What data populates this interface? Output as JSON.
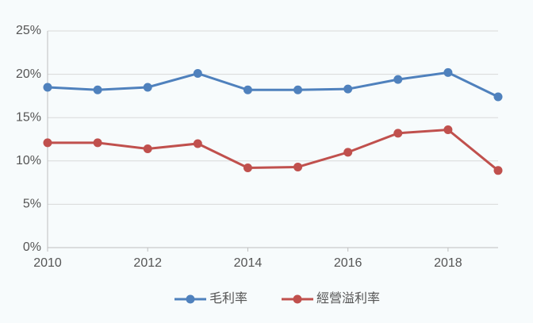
{
  "chart_data": {
    "type": "line",
    "x": [
      2010,
      2011,
      2012,
      2013,
      2014,
      2015,
      2016,
      2017,
      2018,
      2019
    ],
    "series": [
      {
        "name": "毛利率",
        "color": "#4f81bd",
        "values": [
          18.5,
          18.2,
          18.5,
          20.1,
          18.2,
          18.2,
          18.3,
          19.4,
          20.2,
          17.4
        ]
      },
      {
        "name": "經營溢利率",
        "color": "#c0504d",
        "values": [
          12.1,
          12.1,
          11.4,
          12.0,
          9.2,
          9.3,
          11.0,
          13.2,
          13.6,
          8.9
        ]
      }
    ],
    "xlim": [
      2010,
      2019
    ],
    "xticks": [
      2010,
      2012,
      2014,
      2016,
      2018
    ],
    "ylim": [
      0,
      25
    ],
    "yticks": [
      {
        "value": 0,
        "label": "0%"
      },
      {
        "value": 5,
        "label": "5%"
      },
      {
        "value": 10,
        "label": "10%"
      },
      {
        "value": 15,
        "label": "15%"
      },
      {
        "value": 20,
        "label": "20%"
      },
      {
        "value": 25,
        "label": "25%"
      }
    ],
    "grid": true,
    "legend": "bottom"
  }
}
